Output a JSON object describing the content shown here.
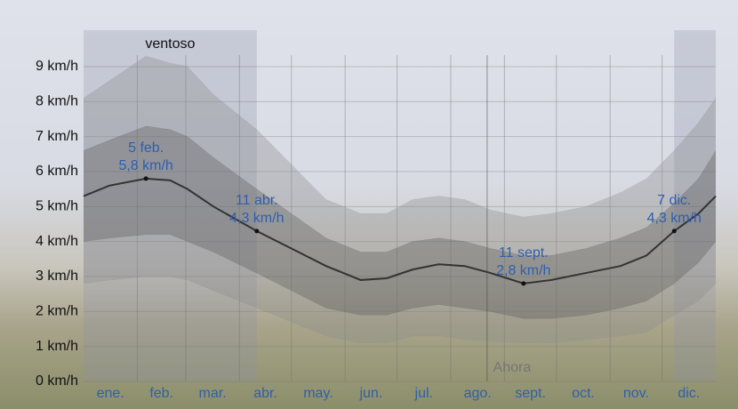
{
  "chart_data": {
    "type": "band-line",
    "categories": [
      "ene.",
      "feb.",
      "mar.",
      "abr.",
      "may.",
      "jun.",
      "jul.",
      "ago.",
      "sept.",
      "oct.",
      "nov.",
      "dic."
    ],
    "x": [
      0,
      15,
      36,
      50,
      60,
      75,
      100,
      120,
      140,
      160,
      175,
      190,
      205,
      220,
      235,
      254,
      270,
      290,
      310,
      325,
      341,
      355,
      365
    ],
    "series": [
      {
        "color": "#8c8c8c",
        "values": [
          2.8,
          2.9,
          3.0,
          3.0,
          2.9,
          2.6,
          2.1,
          1.7,
          1.3,
          1.1,
          1.1,
          1.3,
          1.3,
          1.2,
          1.15,
          1.1,
          1.1,
          1.2,
          1.3,
          1.4,
          1.9,
          2.3,
          2.8
        ]
      },
      {
        "color": "#5a5a5a",
        "values": [
          4.0,
          4.1,
          4.2,
          4.2,
          4.0,
          3.7,
          3.1,
          2.6,
          2.1,
          1.9,
          1.9,
          2.1,
          2.2,
          2.1,
          2.0,
          1.8,
          1.8,
          1.9,
          2.1,
          2.3,
          2.8,
          3.4,
          4.0
        ]
      },
      {
        "color": "#333333",
        "values": [
          5.3,
          5.6,
          5.8,
          5.75,
          5.5,
          5.0,
          4.3,
          3.8,
          3.3,
          2.9,
          2.95,
          3.2,
          3.35,
          3.3,
          3.1,
          2.8,
          2.9,
          3.1,
          3.3,
          3.6,
          4.3,
          4.8,
          5.3
        ]
      },
      {
        "color": "#5a5a5a",
        "values": [
          6.6,
          6.9,
          7.3,
          7.2,
          7.0,
          6.4,
          5.5,
          4.8,
          4.1,
          3.7,
          3.7,
          4.0,
          4.1,
          4.0,
          3.8,
          3.6,
          3.6,
          3.8,
          4.1,
          4.4,
          5.1,
          5.8,
          6.6
        ]
      },
      {
        "color": "#8c8c8c",
        "values": [
          8.1,
          8.6,
          9.3,
          9.1,
          9.0,
          8.2,
          7.2,
          6.2,
          5.2,
          4.8,
          4.8,
          5.2,
          5.3,
          5.2,
          4.9,
          4.7,
          4.8,
          5.0,
          5.4,
          5.8,
          6.6,
          7.4,
          8.1
        ]
      }
    ],
    "xlim": [
      0,
      365
    ],
    "xticks": [
      31,
      59,
      90,
      120,
      151,
      181,
      212,
      243,
      273,
      304,
      334
    ],
    "ylim": [
      0,
      9
    ],
    "yticks": [
      {
        "value": 0,
        "label": "0 km/h"
      },
      {
        "value": 1,
        "label": "1 km/h"
      },
      {
        "value": 2,
        "label": "2 km/h"
      },
      {
        "value": 3,
        "label": "3 km/h"
      },
      {
        "value": 4,
        "label": "4 km/h"
      },
      {
        "value": 5,
        "label": "5 km/h"
      },
      {
        "value": 6,
        "label": "6 km/h"
      },
      {
        "value": 7,
        "label": "7 km/h"
      },
      {
        "value": 8,
        "label": "8 km/h"
      },
      {
        "value": 9,
        "label": "9 km/h"
      }
    ],
    "grid": true,
    "highlight_ranges": [
      {
        "label": "ventoso",
        "x": [
          0,
          100
        ]
      },
      {
        "x": [
          341,
          365
        ]
      }
    ],
    "now": {
      "x": 233,
      "label": "Ahora"
    },
    "annotations": [
      {
        "x": 36,
        "y": 5.8,
        "date": "5 feb.",
        "value_label": "5,8 km/h"
      },
      {
        "x": 100,
        "y": 4.3,
        "date": "11 abr.",
        "value_label": "4,3 km/h"
      },
      {
        "x": 254,
        "y": 2.8,
        "date": "11 sept.",
        "value_label": "2,8 km/h"
      },
      {
        "x": 341,
        "y": 4.3,
        "date": "7 dic.",
        "value_label": "4,3 km/h"
      }
    ]
  }
}
